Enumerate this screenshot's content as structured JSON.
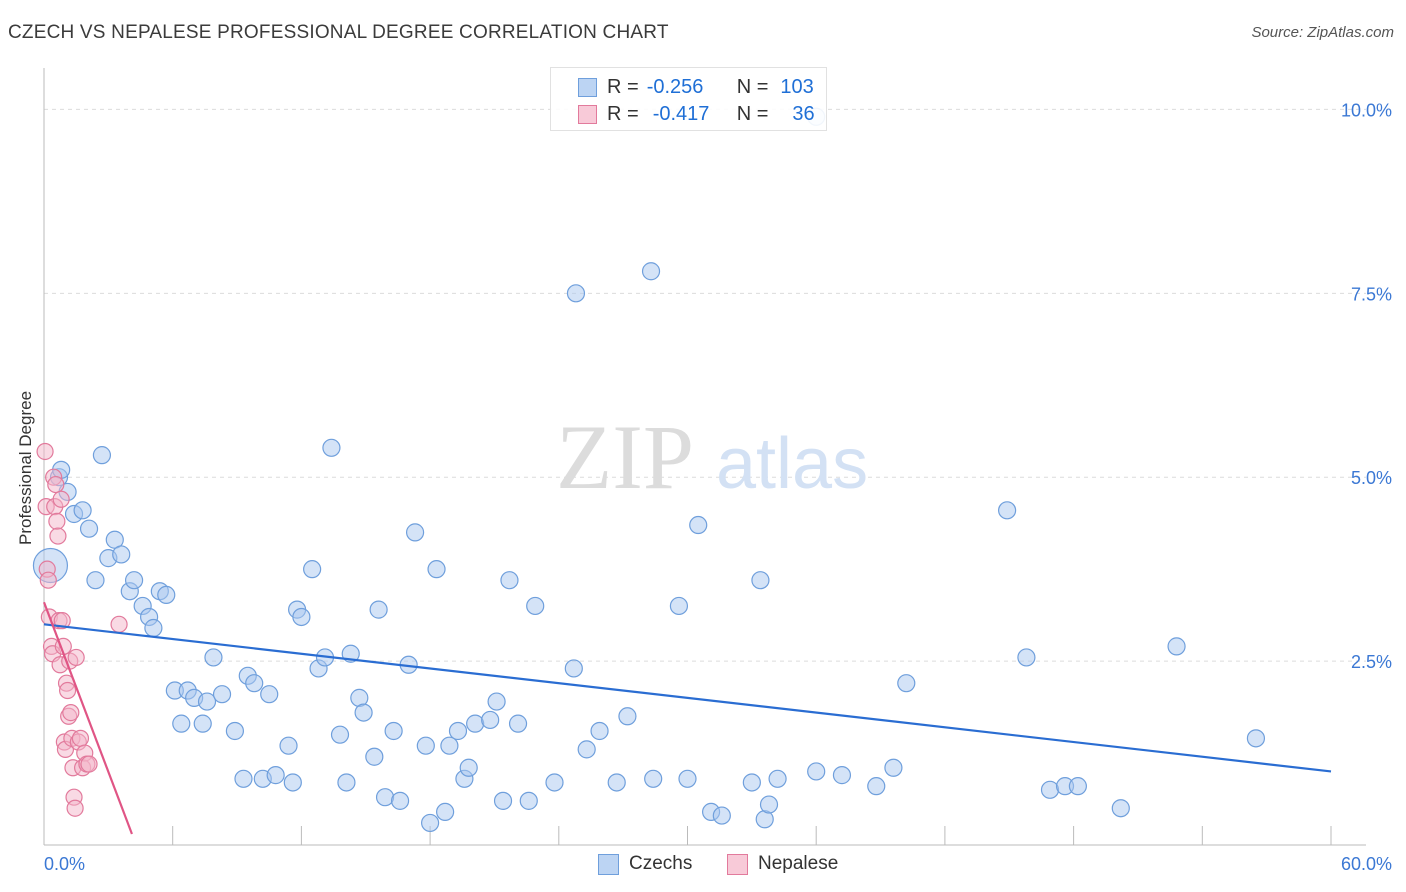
{
  "title": "CZECH VS NEPALESE PROFESSIONAL DEGREE CORRELATION CHART",
  "source": "Source: ZipAtlas.com",
  "watermark": {
    "zip": "ZIP",
    "atlas": "atlas"
  },
  "legend_top": {
    "rows": [
      {
        "r_label": "R =",
        "r_value": "-0.256",
        "n_label": "N =",
        "n_value": "103"
      },
      {
        "r_label": "R =",
        "r_value": "-0.417",
        "n_label": "N =",
        "n_value": "36"
      }
    ]
  },
  "legend_bottom": {
    "czechs": "Czechs",
    "nepalese": "Nepalese"
  },
  "colors": {
    "czech_fill": "#a9c8ef",
    "czech_stroke": "#6f9fdc",
    "czech_line": "#2a6dd2",
    "nepal_fill": "#f4b6c9",
    "nepal_stroke": "#e27a9c",
    "nepal_line": "#e05585",
    "tick_label": "#3b78d4",
    "grid": "#dcdcdc"
  },
  "chart_data": {
    "type": "scatter",
    "title": "CZECH VS NEPALESE PROFESSIONAL DEGREE CORRELATION CHART",
    "xlabel": "",
    "ylabel": "Professional Degree",
    "xlim": [
      0,
      60
    ],
    "ylim": [
      0,
      10.4
    ],
    "x_tick_labels": [
      {
        "value": 0,
        "label": "0.0%"
      },
      {
        "value": 60,
        "label": "60.0%"
      }
    ],
    "y_ticks": [
      {
        "value": 2.5,
        "label": "2.5%"
      },
      {
        "value": 5.0,
        "label": "5.0%"
      },
      {
        "value": 7.5,
        "label": "7.5%"
      },
      {
        "value": 10.0,
        "label": "10.0%"
      }
    ],
    "series": [
      {
        "name": "Czechs",
        "r": -0.256,
        "n": 103,
        "trend": {
          "x": [
            0,
            60
          ],
          "y": [
            3.0,
            1.0
          ]
        },
        "points": [
          {
            "x": 0.3,
            "y": 3.8,
            "big": true
          },
          {
            "x": 0.7,
            "y": 5.0
          },
          {
            "x": 0.8,
            "y": 5.1
          },
          {
            "x": 1.1,
            "y": 4.8
          },
          {
            "x": 1.4,
            "y": 4.5
          },
          {
            "x": 1.8,
            "y": 4.55
          },
          {
            "x": 2.1,
            "y": 4.3
          },
          {
            "x": 2.4,
            "y": 3.6
          },
          {
            "x": 2.7,
            "y": 5.3
          },
          {
            "x": 3.0,
            "y": 3.9
          },
          {
            "x": 3.3,
            "y": 4.15
          },
          {
            "x": 3.6,
            "y": 3.95
          },
          {
            "x": 4.0,
            "y": 3.45
          },
          {
            "x": 4.2,
            "y": 3.6
          },
          {
            "x": 4.6,
            "y": 3.25
          },
          {
            "x": 4.9,
            "y": 3.1
          },
          {
            "x": 5.1,
            "y": 2.95
          },
          {
            "x": 5.4,
            "y": 3.45
          },
          {
            "x": 5.7,
            "y": 3.4
          },
          {
            "x": 6.1,
            "y": 2.1
          },
          {
            "x": 6.4,
            "y": 1.65
          },
          {
            "x": 6.7,
            "y": 2.1
          },
          {
            "x": 7.0,
            "y": 2.0
          },
          {
            "x": 7.4,
            "y": 1.65
          },
          {
            "x": 7.6,
            "y": 1.95
          },
          {
            "x": 7.9,
            "y": 2.55
          },
          {
            "x": 8.3,
            "y": 2.05
          },
          {
            "x": 8.9,
            "y": 1.55
          },
          {
            "x": 9.3,
            "y": 0.9
          },
          {
            "x": 9.5,
            "y": 2.3
          },
          {
            "x": 9.8,
            "y": 2.2
          },
          {
            "x": 10.2,
            "y": 0.9
          },
          {
            "x": 10.5,
            "y": 2.05
          },
          {
            "x": 10.8,
            "y": 0.95
          },
          {
            "x": 11.4,
            "y": 1.35
          },
          {
            "x": 11.6,
            "y": 0.85
          },
          {
            "x": 11.8,
            "y": 3.2
          },
          {
            "x": 12.0,
            "y": 3.1
          },
          {
            "x": 12.5,
            "y": 3.75
          },
          {
            "x": 12.8,
            "y": 2.4
          },
          {
            "x": 13.1,
            "y": 2.55
          },
          {
            "x": 13.4,
            "y": 5.4
          },
          {
            "x": 13.8,
            "y": 1.5
          },
          {
            "x": 14.1,
            "y": 0.85
          },
          {
            "x": 14.3,
            "y": 2.6
          },
          {
            "x": 14.7,
            "y": 2.0
          },
          {
            "x": 14.9,
            "y": 1.8
          },
          {
            "x": 15.4,
            "y": 1.2
          },
          {
            "x": 15.6,
            "y": 3.2
          },
          {
            "x": 15.9,
            "y": 0.65
          },
          {
            "x": 16.3,
            "y": 1.55
          },
          {
            "x": 16.6,
            "y": 0.6
          },
          {
            "x": 17.0,
            "y": 2.45
          },
          {
            "x": 17.3,
            "y": 4.25
          },
          {
            "x": 17.8,
            "y": 1.35
          },
          {
            "x": 18.0,
            "y": 0.3
          },
          {
            "x": 18.3,
            "y": 3.75
          },
          {
            "x": 18.7,
            "y": 0.45
          },
          {
            "x": 18.9,
            "y": 1.35
          },
          {
            "x": 19.3,
            "y": 1.55
          },
          {
            "x": 19.6,
            "y": 0.9
          },
          {
            "x": 19.8,
            "y": 1.05
          },
          {
            "x": 20.1,
            "y": 1.65
          },
          {
            "x": 20.8,
            "y": 1.7
          },
          {
            "x": 21.1,
            "y": 1.95
          },
          {
            "x": 21.4,
            "y": 0.6
          },
          {
            "x": 21.7,
            "y": 3.6
          },
          {
            "x": 22.1,
            "y": 1.65
          },
          {
            "x": 22.6,
            "y": 0.6
          },
          {
            "x": 22.9,
            "y": 3.25
          },
          {
            "x": 23.8,
            "y": 0.85
          },
          {
            "x": 24.8,
            "y": 7.5
          },
          {
            "x": 24.7,
            "y": 2.4
          },
          {
            "x": 25.3,
            "y": 1.3
          },
          {
            "x": 25.9,
            "y": 1.55
          },
          {
            "x": 26.7,
            "y": 0.85
          },
          {
            "x": 27.2,
            "y": 1.75
          },
          {
            "x": 28.3,
            "y": 7.8
          },
          {
            "x": 28.4,
            "y": 0.9
          },
          {
            "x": 29.6,
            "y": 3.25
          },
          {
            "x": 30.0,
            "y": 0.9
          },
          {
            "x": 30.5,
            "y": 4.35
          },
          {
            "x": 31.1,
            "y": 0.45
          },
          {
            "x": 31.6,
            "y": 0.4
          },
          {
            "x": 33.0,
            "y": 0.85
          },
          {
            "x": 33.4,
            "y": 3.6
          },
          {
            "x": 33.6,
            "y": 0.35
          },
          {
            "x": 33.8,
            "y": 0.55
          },
          {
            "x": 34.2,
            "y": 0.9
          },
          {
            "x": 36.0,
            "y": 9.9
          },
          {
            "x": 36.0,
            "y": 1.0
          },
          {
            "x": 37.2,
            "y": 0.95
          },
          {
            "x": 38.8,
            "y": 0.8
          },
          {
            "x": 39.6,
            "y": 1.05
          },
          {
            "x": 40.2,
            "y": 2.2
          },
          {
            "x": 44.9,
            "y": 4.55
          },
          {
            "x": 45.8,
            "y": 2.55
          },
          {
            "x": 46.9,
            "y": 0.75
          },
          {
            "x": 47.6,
            "y": 0.8
          },
          {
            "x": 48.2,
            "y": 0.8
          },
          {
            "x": 50.2,
            "y": 0.5
          },
          {
            "x": 52.8,
            "y": 2.7
          },
          {
            "x": 56.5,
            "y": 1.45
          }
        ]
      },
      {
        "name": "Nepalese",
        "r": -0.417,
        "n": 36,
        "trend": {
          "x": [
            0,
            4.1
          ],
          "y": [
            3.3,
            0.15
          ]
        },
        "points": [
          {
            "x": 0.05,
            "y": 5.35
          },
          {
            "x": 0.1,
            "y": 4.6
          },
          {
            "x": 0.15,
            "y": 3.75
          },
          {
            "x": 0.2,
            "y": 3.6
          },
          {
            "x": 0.25,
            "y": 3.1
          },
          {
            "x": 0.35,
            "y": 2.7
          },
          {
            "x": 0.4,
            "y": 2.6
          },
          {
            "x": 0.45,
            "y": 5.0
          },
          {
            "x": 0.5,
            "y": 4.6
          },
          {
            "x": 0.55,
            "y": 4.9
          },
          {
            "x": 0.6,
            "y": 4.4
          },
          {
            "x": 0.65,
            "y": 4.2
          },
          {
            "x": 0.7,
            "y": 3.05
          },
          {
            "x": 0.75,
            "y": 2.45
          },
          {
            "x": 0.8,
            "y": 4.7
          },
          {
            "x": 0.85,
            "y": 3.05
          },
          {
            "x": 0.9,
            "y": 2.7
          },
          {
            "x": 0.95,
            "y": 1.4
          },
          {
            "x": 1.0,
            "y": 1.3
          },
          {
            "x": 1.05,
            "y": 2.2
          },
          {
            "x": 1.1,
            "y": 2.1
          },
          {
            "x": 1.15,
            "y": 1.75
          },
          {
            "x": 1.2,
            "y": 2.5
          },
          {
            "x": 1.25,
            "y": 1.8
          },
          {
            "x": 1.3,
            "y": 1.45
          },
          {
            "x": 1.35,
            "y": 1.05
          },
          {
            "x": 1.4,
            "y": 0.65
          },
          {
            "x": 1.45,
            "y": 0.5
          },
          {
            "x": 1.5,
            "y": 2.55
          },
          {
            "x": 1.6,
            "y": 1.4
          },
          {
            "x": 1.7,
            "y": 1.45
          },
          {
            "x": 1.8,
            "y": 1.05
          },
          {
            "x": 1.9,
            "y": 1.25
          },
          {
            "x": 2.0,
            "y": 1.1
          },
          {
            "x": 2.1,
            "y": 1.1
          },
          {
            "x": 3.5,
            "y": 3.0
          }
        ]
      }
    ]
  }
}
